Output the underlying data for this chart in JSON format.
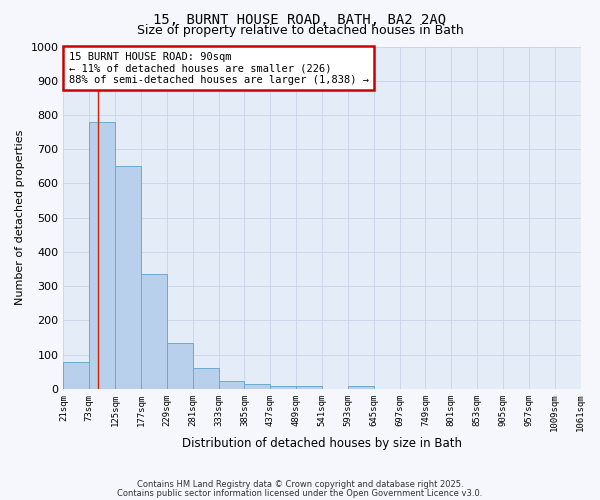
{
  "title_line1": "15, BURNT HOUSE ROAD, BATH, BA2 2AQ",
  "title_line2": "Size of property relative to detached houses in Bath",
  "xlabel": "Distribution of detached houses by size in Bath",
  "ylabel": "Number of detached properties",
  "bar_values": [
    80,
    780,
    650,
    335,
    135,
    60,
    22,
    15,
    8,
    8,
    0,
    10,
    0,
    0,
    0,
    0,
    0,
    0,
    0,
    0
  ],
  "bin_edges": [
    21,
    73,
    125,
    177,
    229,
    281,
    333,
    385,
    437,
    489,
    541,
    593,
    645,
    697,
    749,
    801,
    853,
    905,
    957,
    1009,
    1061
  ],
  "x_tick_labels": [
    "21sqm",
    "73sqm",
    "125sqm",
    "177sqm",
    "229sqm",
    "281sqm",
    "333sqm",
    "385sqm",
    "437sqm",
    "489sqm",
    "541sqm",
    "593sqm",
    "645sqm",
    "697sqm",
    "749sqm",
    "801sqm",
    "853sqm",
    "905sqm",
    "957sqm",
    "1009sqm",
    "1061sqm"
  ],
  "bar_color": "#b8d0eb",
  "bar_edge_color": "#6baad0",
  "red_line_x": 90,
  "annotation_text_line1": "15 BURNT HOUSE ROAD: 90sqm",
  "annotation_text_line2": "← 11% of detached houses are smaller (226)",
  "annotation_text_line3": "88% of semi-detached houses are larger (1,838) →",
  "annotation_box_facecolor": "#ffffff",
  "annotation_box_edgecolor": "#cc0000",
  "ylim": [
    0,
    1000
  ],
  "yticks": [
    0,
    100,
    200,
    300,
    400,
    500,
    600,
    700,
    800,
    900,
    1000
  ],
  "grid_color": "#c8d4e8",
  "plot_bg_color": "#e4ecf7",
  "fig_bg_color": "#f5f7fc",
  "footer_line1": "Contains HM Land Registry data © Crown copyright and database right 2025.",
  "footer_line2": "Contains public sector information licensed under the Open Government Licence v3.0."
}
